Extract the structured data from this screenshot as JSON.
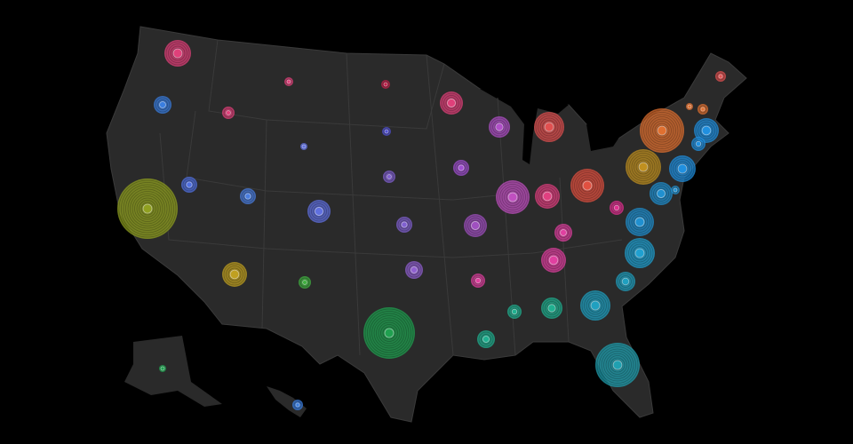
{
  "map": {
    "bubbles": [
      {
        "size": 15,
        "color": "#e0407a"
      },
      {
        "size": 10,
        "color": "#3a7ee0"
      },
      {
        "size": 7,
        "color": "#e0407a"
      },
      {
        "size": 5,
        "color": "#e0407a"
      },
      {
        "size": 5,
        "color": "#c0204a"
      },
      {
        "size": 13,
        "color": "#e0407a"
      },
      {
        "size": 12,
        "color": "#b050c8"
      },
      {
        "size": 17,
        "color": "#e05050"
      },
      {
        "size": 5,
        "color": "#5050d0"
      },
      {
        "size": 4,
        "color": "#6070e0"
      },
      {
        "size": 9,
        "color": "#5070e0"
      },
      {
        "size": 34,
        "color": "#90a020"
      },
      {
        "size": 9,
        "color": "#4a7ee0"
      },
      {
        "size": 13,
        "color": "#6070e0"
      },
      {
        "size": 7,
        "color": "#8060d0"
      },
      {
        "size": 9,
        "color": "#a050d0"
      },
      {
        "size": 19,
        "color": "#c050c0"
      },
      {
        "size": 14,
        "color": "#e04080"
      },
      {
        "size": 19,
        "color": "#e05040"
      },
      {
        "size": 9,
        "color": "#8060d0"
      },
      {
        "size": 13,
        "color": "#a050c0"
      },
      {
        "size": 10,
        "color": "#e040a0"
      },
      {
        "size": 8,
        "color": "#e03090"
      },
      {
        "size": 14,
        "color": "#e040a0"
      },
      {
        "size": 10,
        "color": "#9060d0"
      },
      {
        "size": 8,
        "color": "#e040a0"
      },
      {
        "size": 14,
        "color": "#c0a020"
      },
      {
        "size": 7,
        "color": "#40b040"
      },
      {
        "size": 29,
        "color": "#20a050"
      },
      {
        "size": 10,
        "color": "#20b090"
      },
      {
        "size": 8,
        "color": "#20b090"
      },
      {
        "size": 12,
        "color": "#20b090"
      },
      {
        "size": 17,
        "color": "#20a0c0"
      },
      {
        "size": 11,
        "color": "#20a0c0"
      },
      {
        "size": 17,
        "color": "#20a0d0"
      },
      {
        "size": 16,
        "color": "#2090d0"
      },
      {
        "size": 25,
        "color": "#20a0b0"
      },
      {
        "size": 20,
        "color": "#c09020"
      },
      {
        "size": 25,
        "color": "#e07030"
      },
      {
        "size": 13,
        "color": "#2090d0"
      },
      {
        "size": 5,
        "color": "#2090d0"
      },
      {
        "size": 15,
        "color": "#2090e0"
      },
      {
        "size": 14,
        "color": "#2090e0"
      },
      {
        "size": 8,
        "color": "#2090e0"
      },
      {
        "size": 4,
        "color": "#e07030"
      },
      {
        "size": 6,
        "color": "#e07030"
      },
      {
        "size": 6,
        "color": "#e05050"
      },
      {
        "size": 4,
        "color": "#20a050"
      },
      {
        "size": 6,
        "color": "#3a7ee0"
      }
    ]
  }
}
